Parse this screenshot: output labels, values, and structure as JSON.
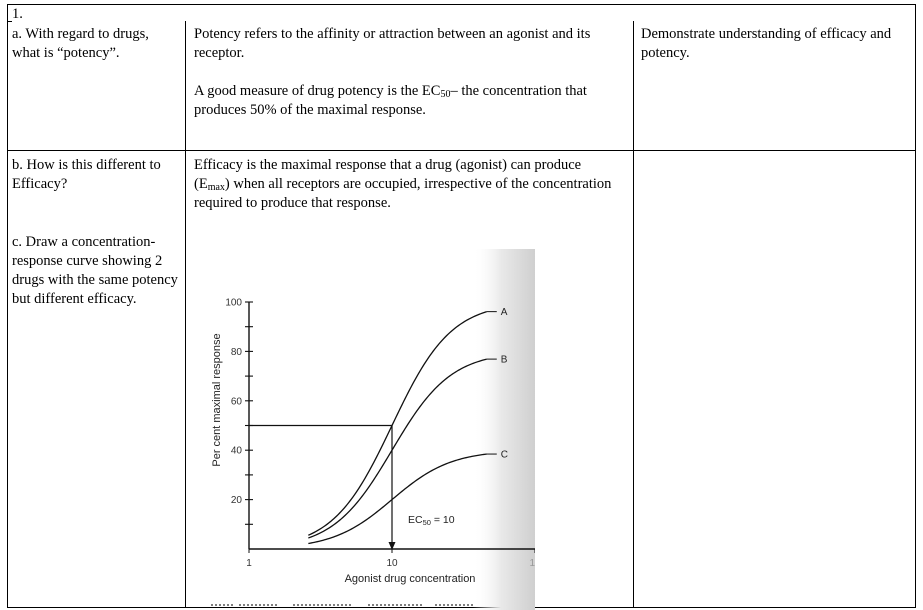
{
  "header_cell": "1.",
  "rows": [
    {
      "question": "a.  With regard to drugs, what is “potency”.",
      "answer_paragraphs": [
        "Potency refers to the affinity or attraction between an agonist and its receptor.",
        "A good measure of drug potency is the EC"
      ],
      "answer_ec50_sub": "50",
      "answer_ec50_rest": "– the concentration that produces 50% of the maximal response.",
      "outcome": "Demonstrate understanding of efficacy and potency."
    },
    {
      "question": "b.  How is this different to Efficacy?",
      "answer_part1": "Efficacy is the maximal response that a drug (agonist) can produce (E",
      "answer_sub": "max",
      "answer_part2": ") when all receptors are occupied, irrespective of the concentration required to produce that response."
    },
    {
      "question": "c.  Draw a concentration-response curve showing 2 drugs with the same potency but different efficacy."
    }
  ],
  "chart_data": {
    "type": "line",
    "title": "",
    "xlabel": "Agonist drug concentration",
    "ylabel": "Per cent maximal response",
    "x_scale": "log",
    "xlim": [
      1,
      100
    ],
    "ylim": [
      0,
      100
    ],
    "x_ticks": [
      "1",
      "10",
      "10"
    ],
    "y_ticks": [
      20,
      40,
      60,
      80,
      100
    ],
    "series": [
      {
        "name": "A",
        "emax": 100,
        "ec50": 10
      },
      {
        "name": "B",
        "emax": 80,
        "ec50": 10
      },
      {
        "name": "C",
        "emax": 40,
        "ec50": 10
      }
    ],
    "annotations": [
      {
        "text_main": "EC",
        "text_sub": "50",
        "text_rest": " = 10",
        "x": 10,
        "y": 50
      }
    ],
    "grid": false,
    "legend": "curve labels at right end of each curve"
  }
}
